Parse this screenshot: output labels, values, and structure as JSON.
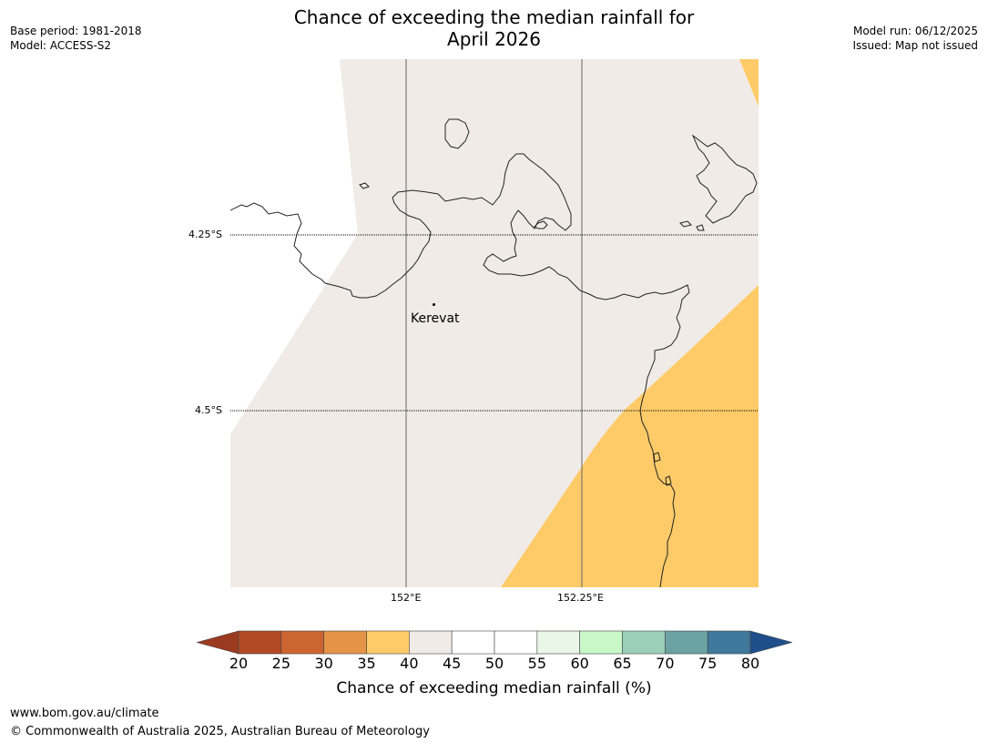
{
  "header": {
    "base_period": "Base period: 1981-2018",
    "model": "Model: ACCESS-S2",
    "title_line1": "Chance of exceeding the median rainfall for",
    "title_line2": "April 2026",
    "model_run": "Model run: 06/12/2025",
    "issued": "Issued: Map not issued"
  },
  "map": {
    "town": "Kerevat",
    "latitudes": [
      "4.25°S",
      "4.5°S"
    ],
    "longitudes": [
      "152°E",
      "152.25°E"
    ],
    "colors": {
      "neutral": "#f0ebe6",
      "orange": "#fecb68",
      "coast": "#222222"
    }
  },
  "colorbar": {
    "title": "Chance of exceeding median rainfall (%)",
    "ticks": [
      "20",
      "25",
      "30",
      "35",
      "40",
      "45",
      "50",
      "55",
      "60",
      "65",
      "70",
      "75",
      "80"
    ],
    "colors": [
      "#9c3a20",
      "#b24a26",
      "#cd6531",
      "#e59447",
      "#fecb68",
      "#f0ebe6",
      "#ffffff",
      "#ffffff",
      "#eaf6e8",
      "#c8f7c8",
      "#9bcfb8",
      "#6da2a2",
      "#3e789a",
      "#1f4f8a"
    ]
  },
  "footer": {
    "url": "www.bom.gov.au/climate",
    "copyright": "© Commonwealth of Australia 2025, Australian Bureau of Meteorology"
  }
}
